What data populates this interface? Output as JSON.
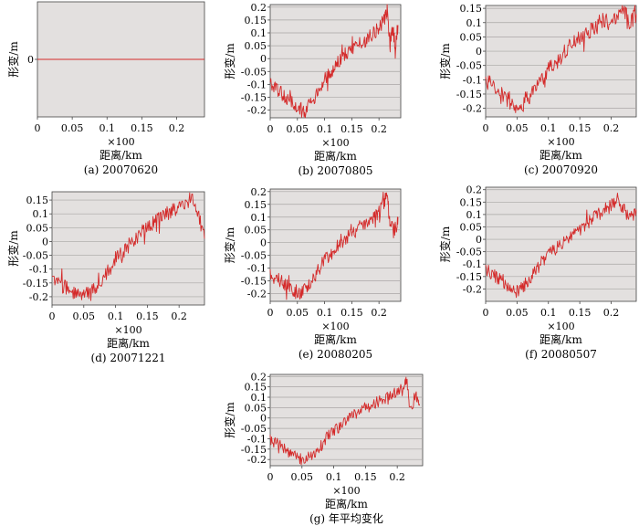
{
  "figure": {
    "colors": {
      "plot_bg": "#e3e0df",
      "grid": "#a9a6a5",
      "line": "#d42a2a",
      "axis": "#444444"
    },
    "xlabel": "距离/km",
    "x_multiplier": "×100",
    "ylabel": "形变/m"
  },
  "chart_data": [
    {
      "type": "line",
      "caption": "(a) 20070620",
      "xlim": [
        0,
        0.24
      ],
      "ylim": [
        -0.25,
        0.25
      ],
      "xticks": [
        "0",
        "0.05",
        "0.1",
        "0.15",
        "0.2"
      ],
      "yticks": [
        "0"
      ],
      "grid": false,
      "series": [
        {
          "x": [
            0,
            0.24
          ],
          "y": [
            0,
            0
          ]
        }
      ]
    },
    {
      "type": "line",
      "caption": "(b) 20070805",
      "xlim": [
        0,
        0.24
      ],
      "ylim": [
        -0.23,
        0.21
      ],
      "xticks": [
        "0",
        "0.05",
        "0.1",
        "0.15",
        "0.2"
      ],
      "yticks": [
        "-0.2",
        "-0.15",
        "-0.1",
        "-0.05",
        "0",
        "0.05",
        "0.1",
        "0.15",
        "0.2"
      ],
      "grid": true,
      "series": [
        {
          "x": [
            0,
            0.01,
            0.02,
            0.03,
            0.04,
            0.05,
            0.06,
            0.07,
            0.08,
            0.09,
            0.1,
            0.11,
            0.12,
            0.13,
            0.14,
            0.15,
            0.16,
            0.17,
            0.18,
            0.19,
            0.2,
            0.21,
            0.215,
            0.22,
            0.225,
            0.23,
            0.235
          ],
          "y": [
            -0.1,
            -0.12,
            -0.13,
            -0.16,
            -0.17,
            -0.19,
            -0.21,
            -0.18,
            -0.16,
            -0.13,
            -0.08,
            -0.06,
            -0.02,
            0.0,
            0.02,
            0.04,
            0.05,
            0.06,
            0.08,
            0.1,
            0.12,
            0.15,
            0.19,
            0.06,
            0.12,
            0.05,
            0.13
          ]
        }
      ]
    },
    {
      "type": "line",
      "caption": "(c) 20070920",
      "xlim": [
        0,
        0.24
      ],
      "ylim": [
        -0.23,
        0.16
      ],
      "xticks": [
        "0",
        "0.05",
        "0.1",
        "0.15",
        "0.2"
      ],
      "yticks": [
        "-0.2",
        "-0.15",
        "-0.1",
        "-0.05",
        "0",
        "0.05",
        "0.1",
        "0.15"
      ],
      "grid": true,
      "series": [
        {
          "x": [
            0,
            0.01,
            0.02,
            0.03,
            0.04,
            0.05,
            0.06,
            0.07,
            0.08,
            0.09,
            0.1,
            0.11,
            0.12,
            0.13,
            0.14,
            0.15,
            0.16,
            0.17,
            0.18,
            0.19,
            0.2,
            0.21,
            0.22,
            0.23,
            0.24
          ],
          "y": [
            -0.1,
            -0.12,
            -0.14,
            -0.16,
            -0.18,
            -0.2,
            -0.19,
            -0.16,
            -0.13,
            -0.1,
            -0.06,
            -0.04,
            -0.02,
            0.01,
            0.03,
            0.05,
            0.06,
            0.08,
            0.1,
            0.11,
            0.09,
            0.12,
            0.14,
            0.1,
            0.13
          ]
        }
      ]
    },
    {
      "type": "line",
      "caption": "(d) 20071221",
      "xlim": [
        0,
        0.24
      ],
      "ylim": [
        -0.23,
        0.18
      ],
      "xticks": [
        "0",
        "0.05",
        "0.1",
        "0.15",
        "0.2"
      ],
      "yticks": [
        "-0.2",
        "-0.15",
        "-0.1",
        "-0.05",
        "0",
        "0.05",
        "0.1",
        "0.15"
      ],
      "grid": true,
      "series": [
        {
          "x": [
            0,
            0.01,
            0.02,
            0.03,
            0.04,
            0.05,
            0.06,
            0.07,
            0.08,
            0.09,
            0.1,
            0.11,
            0.12,
            0.13,
            0.14,
            0.15,
            0.16,
            0.17,
            0.18,
            0.19,
            0.2,
            0.21,
            0.22,
            0.23,
            0.24
          ],
          "y": [
            -0.14,
            -0.15,
            -0.16,
            -0.18,
            -0.19,
            -0.2,
            -0.19,
            -0.16,
            -0.13,
            -0.1,
            -0.06,
            -0.04,
            -0.01,
            0.01,
            0.03,
            0.05,
            0.07,
            0.08,
            0.1,
            0.11,
            0.13,
            0.14,
            0.16,
            0.1,
            0.01
          ]
        }
      ]
    },
    {
      "type": "line",
      "caption": "(e) 20080205",
      "xlim": [
        0,
        0.24
      ],
      "ylim": [
        -0.23,
        0.21
      ],
      "xticks": [
        "0",
        "0.05",
        "0.1",
        "0.15",
        "0.2"
      ],
      "yticks": [
        "-0.2",
        "-0.15",
        "-0.1",
        "-0.05",
        "0",
        "0.05",
        "0.1",
        "0.15",
        "0.2"
      ],
      "grid": true,
      "series": [
        {
          "x": [
            0,
            0.01,
            0.02,
            0.03,
            0.04,
            0.05,
            0.06,
            0.07,
            0.08,
            0.09,
            0.1,
            0.11,
            0.12,
            0.13,
            0.14,
            0.15,
            0.16,
            0.17,
            0.18,
            0.19,
            0.2,
            0.21,
            0.215,
            0.22,
            0.23,
            0.235
          ],
          "y": [
            -0.12,
            -0.14,
            -0.15,
            -0.17,
            -0.18,
            -0.2,
            -0.19,
            -0.17,
            -0.14,
            -0.1,
            -0.07,
            -0.05,
            -0.02,
            0.0,
            0.02,
            0.04,
            0.05,
            0.07,
            0.09,
            0.1,
            0.12,
            0.16,
            0.19,
            0.07,
            0.04,
            0.1
          ]
        }
      ]
    },
    {
      "type": "line",
      "caption": "(f) 20080507",
      "xlim": [
        0,
        0.24
      ],
      "ylim": [
        -0.25,
        0.21
      ],
      "xticks": [
        "0",
        "0.05",
        "0.1",
        "0.15",
        "0.2"
      ],
      "yticks": [
        "-0.2",
        "-0.15",
        "-0.1",
        "-0.05",
        "0",
        "0.05",
        "0.1",
        "0.15",
        "0.2"
      ],
      "grid": true,
      "series": [
        {
          "x": [
            0,
            0.01,
            0.02,
            0.03,
            0.04,
            0.05,
            0.06,
            0.07,
            0.08,
            0.09,
            0.1,
            0.11,
            0.12,
            0.13,
            0.14,
            0.15,
            0.16,
            0.17,
            0.18,
            0.19,
            0.2,
            0.21,
            0.22,
            0.23,
            0.24
          ],
          "y": [
            -0.12,
            -0.14,
            -0.16,
            -0.18,
            -0.2,
            -0.21,
            -0.19,
            -0.16,
            -0.13,
            -0.09,
            -0.06,
            -0.04,
            -0.02,
            0.0,
            0.02,
            0.04,
            0.06,
            0.08,
            0.1,
            0.12,
            0.14,
            0.16,
            0.12,
            0.08,
            0.12
          ]
        }
      ]
    },
    {
      "type": "line",
      "caption": "(g) 年平均变化",
      "xlim": [
        0,
        0.24
      ],
      "ylim": [
        -0.23,
        0.21
      ],
      "xticks": [
        "0",
        "0.05",
        "0.1",
        "0.15",
        "0.2"
      ],
      "yticks": [
        "-0.2",
        "-0.15",
        "-0.1",
        "-0.05",
        "0",
        "0.05",
        "0.1",
        "0.15",
        "0.2"
      ],
      "grid": true,
      "series": [
        {
          "x": [
            0,
            0.01,
            0.02,
            0.03,
            0.04,
            0.05,
            0.06,
            0.07,
            0.08,
            0.09,
            0.1,
            0.11,
            0.12,
            0.13,
            0.14,
            0.15,
            0.16,
            0.17,
            0.18,
            0.19,
            0.2,
            0.21,
            0.215,
            0.22,
            0.23,
            0.235
          ],
          "y": [
            -0.1,
            -0.12,
            -0.14,
            -0.16,
            -0.18,
            -0.2,
            -0.19,
            -0.17,
            -0.13,
            -0.09,
            -0.06,
            -0.04,
            -0.01,
            0.01,
            0.03,
            0.05,
            0.06,
            0.08,
            0.1,
            0.11,
            0.13,
            0.15,
            0.19,
            0.05,
            0.1,
            0.06
          ]
        }
      ]
    }
  ]
}
